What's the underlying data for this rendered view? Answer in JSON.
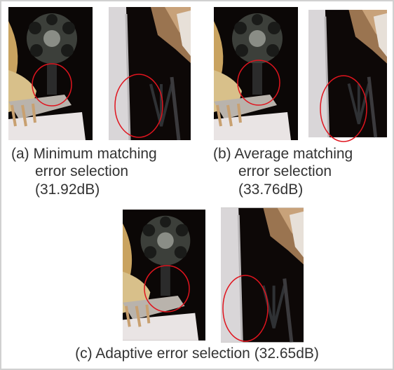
{
  "figure": {
    "panels": [
      {
        "caption_lines": [
          "(a) Minimum matching",
          "error selection",
          "(31.92dB)"
        ]
      },
      {
        "caption_lines": [
          "(b) Average matching",
          "error selection",
          "(33.76dB)"
        ]
      },
      {
        "caption_lines": [
          "(c) Adaptive error selection (32.65dB)"
        ]
      }
    ]
  }
}
